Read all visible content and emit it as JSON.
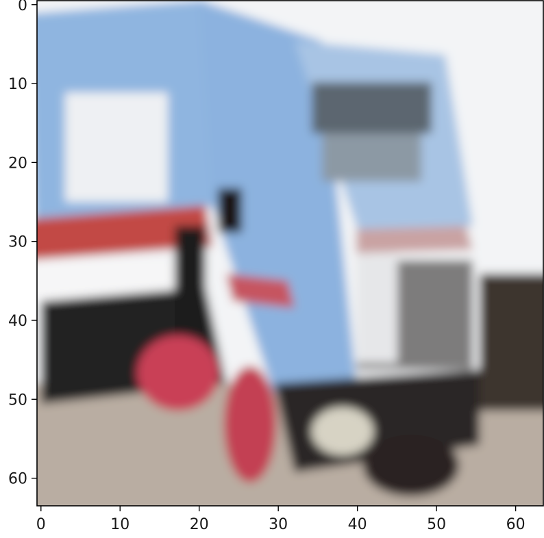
{
  "chart_data": {
    "type": "heatmap",
    "title": "",
    "xlabel": "",
    "ylabel": "",
    "image_size": [
      64,
      64
    ],
    "content": "blurred low-resolution photo of a blue truck cab with red and black parts on a road, white sky background",
    "xlim": [
      -0.5,
      63.5
    ],
    "ylim": [
      63.5,
      -0.5
    ],
    "x_ticks": [
      {
        "value": 0,
        "label": "0"
      },
      {
        "value": 10,
        "label": "10"
      },
      {
        "value": 20,
        "label": "20"
      },
      {
        "value": 30,
        "label": "30"
      },
      {
        "value": 40,
        "label": "40"
      },
      {
        "value": 50,
        "label": "50"
      },
      {
        "value": 60,
        "label": "60"
      }
    ],
    "y_ticks": [
      {
        "value": 0,
        "label": "0"
      },
      {
        "value": 10,
        "label": "10"
      },
      {
        "value": 20,
        "label": "20"
      },
      {
        "value": 30,
        "label": "30"
      },
      {
        "value": 40,
        "label": "40"
      },
      {
        "value": 50,
        "label": "50"
      },
      {
        "value": 60,
        "label": "60"
      }
    ],
    "colors": {
      "sky": "#f4f5f6",
      "truck_blue": "#8db3df",
      "truck_blue_light": "#a9c6e6",
      "red": "#c2484f",
      "dark": "#1d1b1d",
      "road": "#b8aca1",
      "grey": "#7a7878",
      "white": "#f8f8f8"
    }
  }
}
